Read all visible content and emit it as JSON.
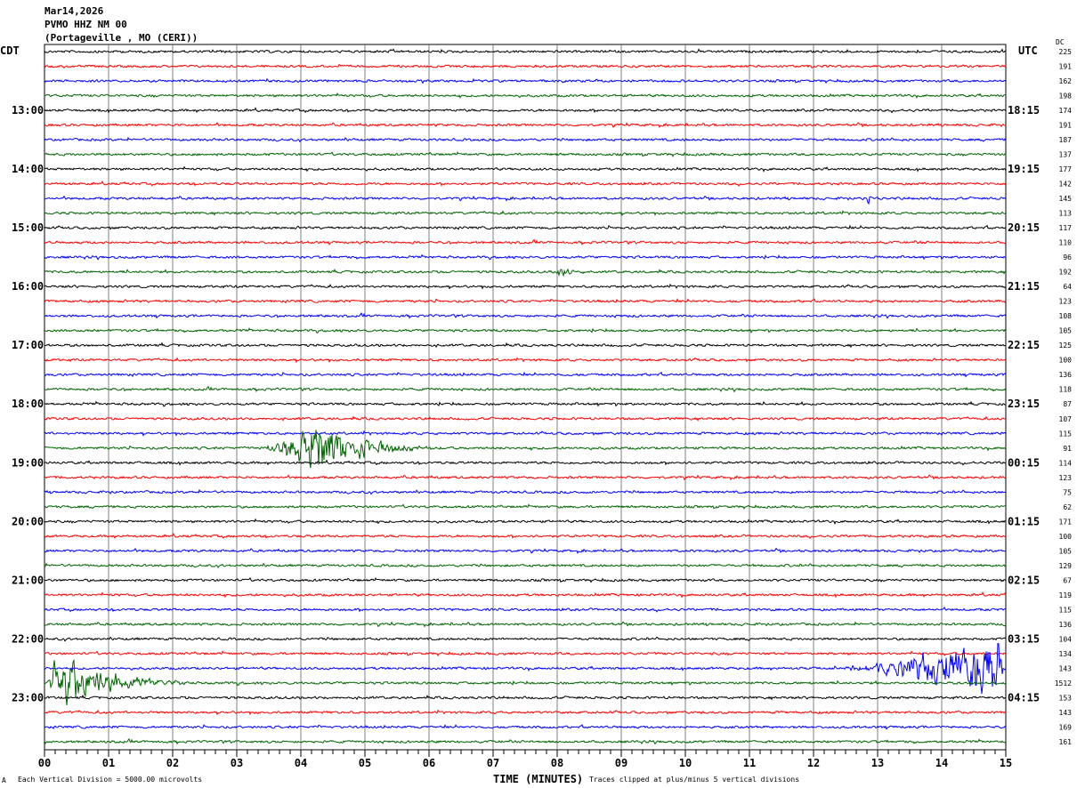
{
  "header": {
    "date": "Mar14,2026",
    "station": "PVMO HHZ NM 00",
    "location": "(Portageville , MO (CERI))",
    "left_zone": "CDT",
    "right_zone": "UTC",
    "dc_label": "DC"
  },
  "footer": {
    "scale": "Each Vertical Division = 5000.00 microvolts",
    "xlabel": "TIME (MINUTES)",
    "clip_note": "Traces clipped at plus/minus 5 vertical divisions",
    "corner_mark": "A"
  },
  "chart_data": {
    "type": "line",
    "title": "PVMO HHZ NM 00 helicorder",
    "xlabel": "TIME (MINUTES)",
    "xlim": [
      0,
      15
    ],
    "x_ticks": [
      "00",
      "01",
      "02",
      "03",
      "04",
      "05",
      "06",
      "07",
      "08",
      "09",
      "10",
      "11",
      "12",
      "13",
      "14",
      "15"
    ],
    "rows_count": 48,
    "minutes_per_row": 15,
    "clip_divisions": 5,
    "trace_colors": [
      "#000000",
      "#ff0000",
      "#0000ff",
      "#006400"
    ],
    "left_labels": [
      {
        "row": 4,
        "text": "13:00"
      },
      {
        "row": 8,
        "text": "14:00"
      },
      {
        "row": 12,
        "text": "15:00"
      },
      {
        "row": 16,
        "text": "16:00"
      },
      {
        "row": 20,
        "text": "17:00"
      },
      {
        "row": 24,
        "text": "18:00"
      },
      {
        "row": 28,
        "text": "19:00"
      },
      {
        "row": 32,
        "text": "20:00"
      },
      {
        "row": 36,
        "text": "21:00"
      },
      {
        "row": 40,
        "text": "22:00"
      },
      {
        "row": 44,
        "text": "23:00"
      }
    ],
    "right_labels": [
      {
        "row": 4,
        "text": "18:15"
      },
      {
        "row": 8,
        "text": "19:15"
      },
      {
        "row": 12,
        "text": "20:15"
      },
      {
        "row": 16,
        "text": "21:15"
      },
      {
        "row": 20,
        "text": "22:15"
      },
      {
        "row": 24,
        "text": "23:15"
      },
      {
        "row": 28,
        "text": "00:15"
      },
      {
        "row": 32,
        "text": "01:15"
      },
      {
        "row": 36,
        "text": "02:15"
      },
      {
        "row": 40,
        "text": "03:15"
      },
      {
        "row": 44,
        "text": "04:15"
      }
    ],
    "dc_offsets": [
      "225",
      "191",
      "162",
      "198",
      "174",
      "191",
      "187",
      "137",
      "177",
      "142",
      "145",
      "113",
      "117",
      "110",
      "96",
      "192",
      "64",
      "123",
      "108",
      "105",
      "125",
      "100",
      "136",
      "118",
      "87",
      "107",
      "115",
      "91",
      "114",
      "123",
      "75",
      "62",
      "171",
      "100",
      "105",
      "129",
      "67",
      "119",
      "115",
      "136",
      "104",
      "134",
      "143",
      "1512",
      "153",
      "143",
      "169",
      "161"
    ],
    "events": [
      {
        "row": 27,
        "start_min": 3.1,
        "peak_min": 4.3,
        "end_min": 6.2,
        "peak_divisions": 4.0
      },
      {
        "row": 42,
        "start_min": 11.8,
        "peak_min": 14.9,
        "end_min": 15.0,
        "peak_divisions": 5.0
      },
      {
        "row": 43,
        "start_min": 0.0,
        "peak_min": 0.2,
        "end_min": 2.3,
        "peak_divisions": 5.0
      },
      {
        "row": 15,
        "start_min": 7.9,
        "peak_min": 8.05,
        "end_min": 8.5,
        "peak_divisions": 1.0
      },
      {
        "row": 10,
        "start_min": 12.8,
        "peak_min": 12.85,
        "end_min": 13.0,
        "peak_divisions": 1.0
      }
    ]
  }
}
